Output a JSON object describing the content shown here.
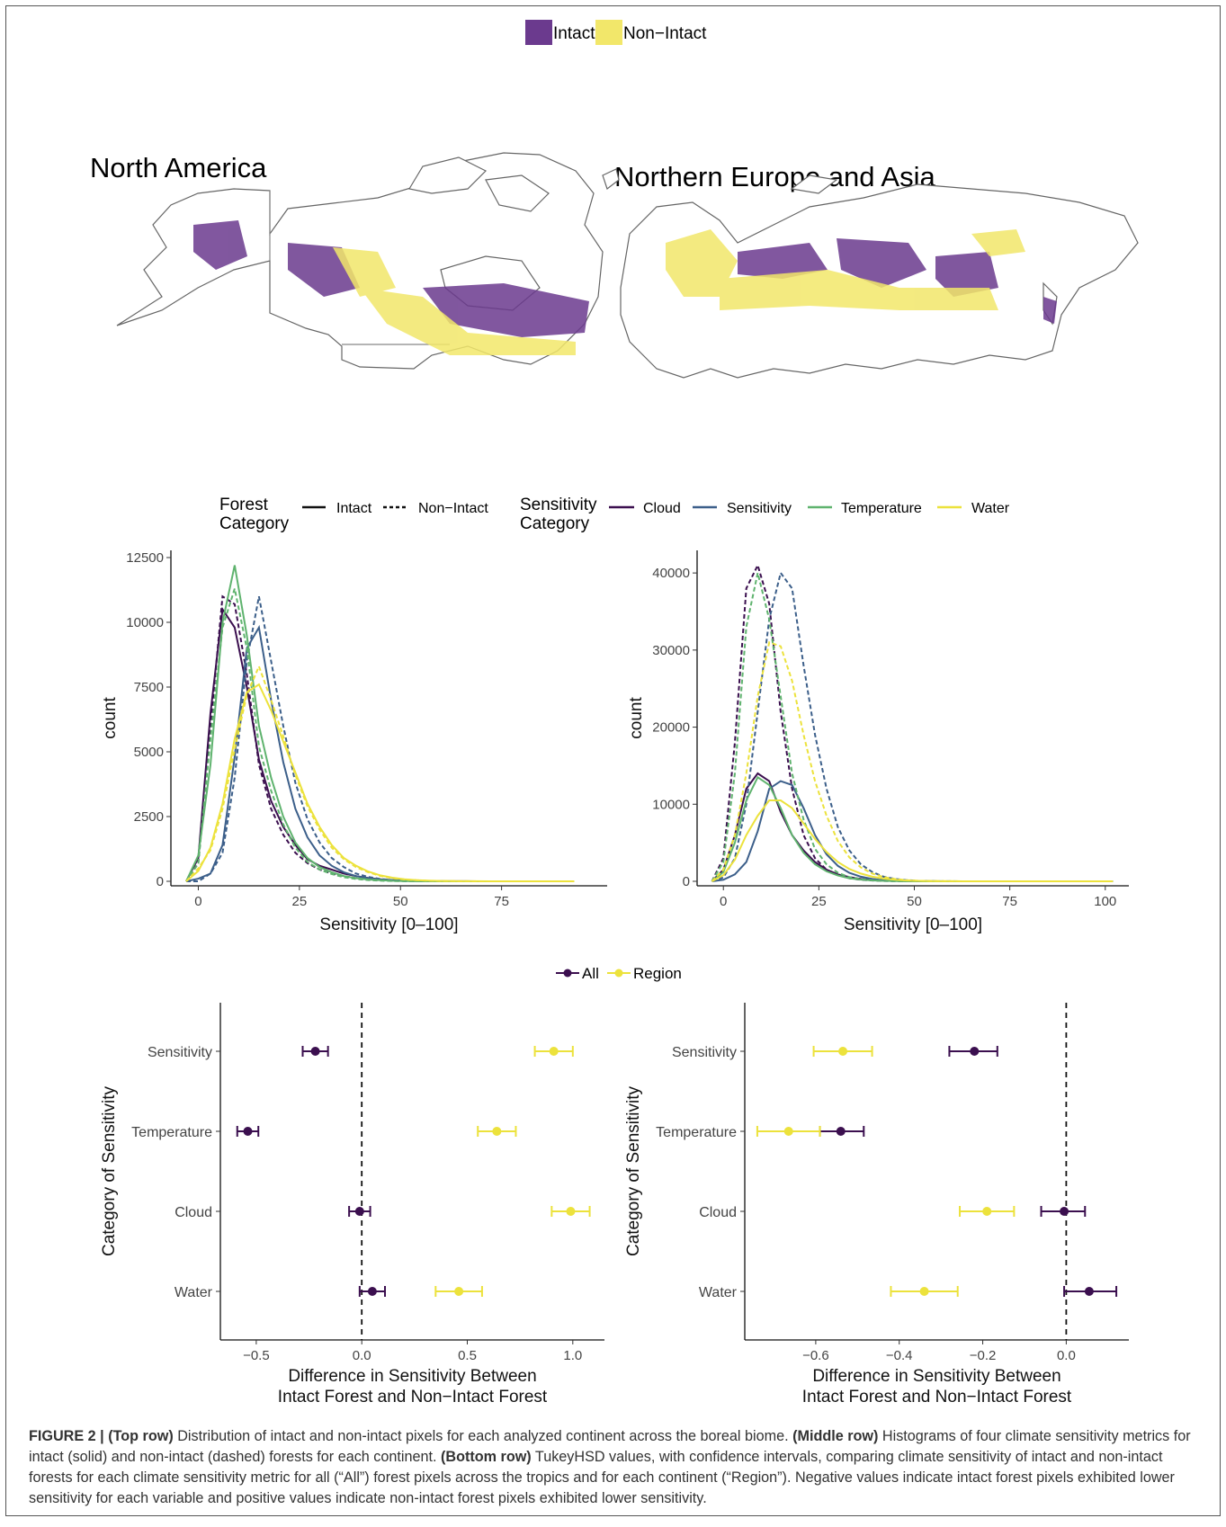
{
  "map": {
    "legend": [
      {
        "label": "Intact",
        "color": "#6b3a8e"
      },
      {
        "label": "Non−Intact",
        "color": "#f2e76a"
      }
    ],
    "panel_labels": [
      "North America",
      "Northern Europe and Asia"
    ]
  },
  "colors": {
    "Cloud": "#3b0f4f",
    "Sensitivity": "#3c5f8a",
    "Temperature": "#5fb36e",
    "Water": "#ece23c",
    "All": "#3b0f4f",
    "Region": "#ece23c"
  },
  "hist_legend": {
    "forest_title": [
      "Forest",
      "Category"
    ],
    "forest_items": [
      "Intact",
      "Non−Intact"
    ],
    "sens_title": [
      "Sensitivity",
      "Category"
    ],
    "sens_items": [
      "Cloud",
      "Sensitivity",
      "Temperature",
      "Water"
    ]
  },
  "point_legend": {
    "items": [
      "All",
      "Region"
    ]
  },
  "chart_data": [
    {
      "type": "line",
      "xlabel": "Sensitivity [0–100]",
      "ylabel": "count",
      "xlim": [
        -5,
        100
      ],
      "ylim": [
        0,
        12500
      ],
      "xticks": [
        0,
        25,
        50,
        75
      ],
      "yticks": [
        0,
        2500,
        5000,
        7500,
        10000,
        12500
      ],
      "x": [
        -3,
        0,
        3,
        6,
        9,
        12,
        15,
        18,
        21,
        24,
        27,
        30,
        33,
        36,
        39,
        42,
        45,
        48,
        51,
        54,
        57,
        60,
        63,
        66,
        69,
        72,
        75,
        78,
        81,
        84,
        87,
        90,
        93
      ],
      "series": [
        {
          "name": "Cloud",
          "style": "Intact",
          "values": [
            0,
            900,
            6500,
            10500,
            9800,
            7500,
            4700,
            3100,
            2100,
            1400,
            850,
            600,
            450,
            300,
            200,
            130,
            80,
            50,
            30,
            20,
            10,
            5,
            3,
            2,
            1,
            0,
            0,
            0,
            0,
            0,
            0,
            0,
            0
          ]
        },
        {
          "name": "Cloud",
          "style": "Non−Intact",
          "values": [
            0,
            700,
            6000,
            11000,
            10700,
            8000,
            4500,
            2800,
            1800,
            1100,
            700,
            450,
            300,
            200,
            120,
            70,
            40,
            20,
            10,
            5,
            2,
            1,
            0,
            0,
            0,
            0,
            0,
            0,
            0,
            0,
            0,
            0,
            0
          ]
        },
        {
          "name": "Sensitivity",
          "style": "Intact",
          "values": [
            0,
            100,
            300,
            1400,
            4800,
            9000,
            9800,
            7000,
            4600,
            2800,
            1700,
            1000,
            600,
            350,
            200,
            120,
            70,
            40,
            20,
            10,
            5,
            3,
            1,
            0,
            0,
            0,
            0,
            0,
            0,
            0,
            0,
            0,
            0
          ]
        },
        {
          "name": "Sensitivity",
          "style": "Non−Intact",
          "values": [
            0,
            0,
            300,
            1100,
            4000,
            8500,
            11000,
            8500,
            6000,
            3800,
            2400,
            1500,
            900,
            550,
            300,
            170,
            90,
            50,
            25,
            12,
            6,
            3,
            1,
            0,
            0,
            0,
            0,
            0,
            0,
            0,
            0,
            0,
            0
          ]
        },
        {
          "name": "Temperature",
          "style": "Intact",
          "values": [
            0,
            1000,
            4500,
            10000,
            12200,
            9500,
            6000,
            4000,
            2500,
            1500,
            900,
            550,
            350,
            200,
            120,
            70,
            40,
            20,
            10,
            5,
            2,
            1,
            0,
            0,
            0,
            0,
            0,
            0,
            0,
            0,
            0,
            0,
            0
          ]
        },
        {
          "name": "Temperature",
          "style": "Non−Intact",
          "values": [
            0,
            700,
            5500,
            9800,
            11300,
            9000,
            5200,
            3500,
            2200,
            1300,
            750,
            450,
            280,
            160,
            90,
            50,
            25,
            12,
            6,
            3,
            1,
            0,
            0,
            0,
            0,
            0,
            0,
            0,
            0,
            0,
            0,
            0,
            0
          ]
        },
        {
          "name": "Water",
          "style": "Intact",
          "values": [
            0,
            400,
            1300,
            3000,
            5500,
            7300,
            7600,
            6600,
            5400,
            4200,
            3000,
            2100,
            1400,
            900,
            600,
            380,
            230,
            140,
            80,
            45,
            25,
            14,
            8,
            4,
            2,
            1,
            0,
            0,
            0,
            0,
            0,
            0,
            0
          ]
        },
        {
          "name": "Water",
          "style": "Non−Intact",
          "values": [
            0,
            500,
            1200,
            2800,
            5100,
            7200,
            8300,
            7000,
            5600,
            4100,
            2900,
            2000,
            1300,
            850,
            550,
            350,
            210,
            120,
            70,
            40,
            22,
            12,
            6,
            3,
            1,
            0,
            0,
            0,
            0,
            0,
            0,
            0,
            0
          ]
        }
      ]
    },
    {
      "type": "line",
      "xlabel": "Sensitivity [0–100]",
      "ylabel": "count",
      "xlim": [
        -5,
        105
      ],
      "ylim": [
        0,
        42000
      ],
      "xticks": [
        0,
        25,
        50,
        75,
        100
      ],
      "yticks": [
        0,
        10000,
        20000,
        30000,
        40000
      ],
      "x": [
        -3,
        0,
        3,
        6,
        9,
        12,
        15,
        18,
        21,
        24,
        27,
        30,
        33,
        36,
        39,
        42,
        45,
        48,
        51,
        54,
        57,
        60,
        63,
        66,
        69,
        72,
        75,
        78,
        81,
        84,
        87,
        90,
        93,
        96,
        99,
        102
      ],
      "series": [
        {
          "name": "Cloud",
          "style": "Intact",
          "values": [
            0,
            1500,
            6000,
            12000,
            14000,
            13000,
            9000,
            6000,
            4000,
            2500,
            1500,
            900,
            550,
            300,
            180,
            100,
            60,
            30,
            15,
            8,
            4,
            2,
            1,
            0,
            0,
            0,
            0,
            0,
            0,
            0,
            0,
            0,
            0,
            0,
            0,
            0
          ]
        },
        {
          "name": "Cloud",
          "style": "Non−Intact",
          "values": [
            0,
            3000,
            18000,
            38000,
            41000,
            36000,
            22000,
            12000,
            6000,
            3000,
            1500,
            800,
            400,
            200,
            100,
            50,
            25,
            12,
            6,
            3,
            1,
            0,
            0,
            0,
            0,
            0,
            0,
            0,
            0,
            0,
            0,
            0,
            0,
            0,
            0,
            0
          ]
        },
        {
          "name": "Sensitivity",
          "style": "Intact",
          "values": [
            0,
            200,
            900,
            2500,
            6500,
            12000,
            13000,
            12500,
            9500,
            6000,
            3500,
            2000,
            1100,
            600,
            300,
            150,
            80,
            40,
            20,
            10,
            5,
            2,
            1,
            0,
            0,
            0,
            0,
            0,
            0,
            0,
            0,
            0,
            0,
            0,
            0,
            0
          ]
        },
        {
          "name": "Sensitivity",
          "style": "Non−Intact",
          "values": [
            0,
            500,
            3000,
            10000,
            22000,
            34000,
            40000,
            38000,
            28000,
            19000,
            12000,
            7000,
            4000,
            2200,
            1200,
            600,
            300,
            150,
            70,
            30,
            15,
            7,
            3,
            1,
            0,
            0,
            0,
            0,
            0,
            0,
            0,
            0,
            0,
            0,
            0,
            0
          ]
        },
        {
          "name": "Temperature",
          "style": "Intact",
          "values": [
            0,
            1200,
            5000,
            10500,
            13500,
            12500,
            9500,
            6000,
            3700,
            2200,
            1300,
            750,
            400,
            220,
            120,
            60,
            30,
            15,
            7,
            3,
            1,
            0,
            0,
            0,
            0,
            0,
            0,
            0,
            0,
            0,
            0,
            0,
            0,
            0,
            0,
            0
          ]
        },
        {
          "name": "Temperature",
          "style": "Non−Intact",
          "values": [
            0,
            2500,
            14000,
            33000,
            40000,
            34000,
            24000,
            14000,
            8000,
            4200,
            2200,
            1100,
            550,
            270,
            130,
            60,
            30,
            14,
            6,
            3,
            1,
            0,
            0,
            0,
            0,
            0,
            0,
            0,
            0,
            0,
            0,
            0,
            0,
            0,
            0,
            0
          ]
        },
        {
          "name": "Water",
          "style": "Intact",
          "values": [
            0,
            800,
            2800,
            6000,
            8500,
            10500,
            10500,
            9500,
            7500,
            5500,
            3800,
            2500,
            1600,
            1000,
            600,
            350,
            200,
            110,
            60,
            30,
            15,
            8,
            4,
            2,
            1,
            0,
            0,
            0,
            0,
            0,
            0,
            0,
            0,
            0,
            0,
            0
          ]
        },
        {
          "name": "Water",
          "style": "Non−Intact",
          "values": [
            0,
            1500,
            6000,
            14000,
            24000,
            31000,
            30500,
            26000,
            19000,
            13000,
            8500,
            5200,
            3100,
            1800,
            1000,
            550,
            290,
            150,
            75,
            37,
            18,
            9,
            4,
            2,
            1,
            0,
            0,
            0,
            0,
            0,
            0,
            0,
            0,
            0,
            0,
            0
          ]
        }
      ]
    },
    {
      "type": "scatter",
      "xlabel": [
        "Difference in Sensitivity Between",
        "Intact Forest and Non−Intact Forest"
      ],
      "ylabel": "Category of Sensitivity",
      "xlim": [
        -0.67,
        1.15
      ],
      "xticks": [
        -0.5,
        0.0,
        0.5,
        1.0
      ],
      "xtick_labels": [
        "−0.5",
        "0.0",
        "0.5",
        "1.0"
      ],
      "categories": [
        "Sensitivity",
        "Temperature",
        "Cloud",
        "Water"
      ],
      "vline": 0,
      "series": [
        {
          "name": "All",
          "values": [
            -0.22,
            -0.54,
            -0.01,
            0.05
          ],
          "lower": [
            -0.28,
            -0.59,
            -0.06,
            -0.01
          ],
          "upper": [
            -0.16,
            -0.49,
            0.04,
            0.11
          ]
        },
        {
          "name": "Region",
          "values": [
            0.91,
            0.64,
            0.99,
            0.46
          ],
          "lower": [
            0.82,
            0.55,
            0.9,
            0.35
          ],
          "upper": [
            1.0,
            0.73,
            1.08,
            0.57
          ]
        }
      ]
    },
    {
      "type": "scatter",
      "xlabel": [
        "Difference in Sensitivity Between",
        "Intact Forest and Non−Intact Forest"
      ],
      "ylabel": "Category of Sensitivity",
      "xlim": [
        -0.77,
        0.15
      ],
      "xticks": [
        -0.6,
        -0.4,
        -0.2,
        0.0
      ],
      "xtick_labels": [
        "−0.6",
        "−0.4",
        "−0.2",
        "0.0"
      ],
      "categories": [
        "Sensitivity",
        "Temperature",
        "Cloud",
        "Water"
      ],
      "vline": 0,
      "series": [
        {
          "name": "All",
          "values": [
            -0.22,
            -0.54,
            -0.005,
            0.055
          ],
          "lower": [
            -0.28,
            -0.59,
            -0.06,
            -0.005
          ],
          "upper": [
            -0.165,
            -0.485,
            0.045,
            0.12
          ]
        },
        {
          "name": "Region",
          "values": [
            -0.535,
            -0.665,
            -0.19,
            -0.34
          ],
          "lower": [
            -0.605,
            -0.74,
            -0.255,
            -0.42
          ],
          "upper": [
            -0.465,
            -0.59,
            -0.125,
            -0.26
          ]
        }
      ]
    }
  ],
  "caption": {
    "fig_label": "FIGURE 2 |",
    "top_label": "(Top row)",
    "top_text": " Distribution of intact and non-intact pixels for each analyzed continent across the boreal biome. ",
    "mid_label": "(Middle row)",
    "mid_text": " Histograms of four climate sensitivity metrics for intact (solid) and non-intact (dashed) forests for each continent. ",
    "bot_label": "(Bottom row)",
    "bot_text": " TukeyHSD values, with confidence intervals, comparing climate sensitivity of intact and non-intact forests for each climate sensitivity metric for all (“All”) forest pixels across the tropics and for each continent (“Region”). Negative values indicate intact forest pixels exhibited lower sensitivity for each variable and positive values indicate non-intact forest pixels exhibited lower sensitivity."
  }
}
